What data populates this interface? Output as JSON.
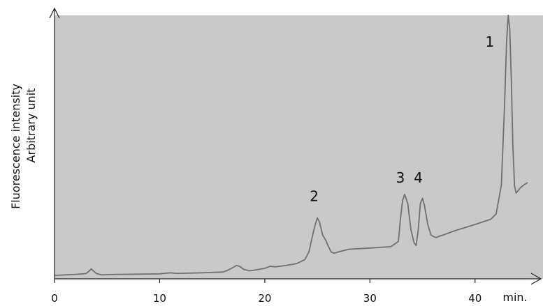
{
  "chart_data": {
    "type": "line",
    "title": "",
    "xlabel": "min.",
    "ylabel": "Fluorescence intensity",
    "ylabel_line2": "Arbitrary unit",
    "xlim": [
      0,
      45
    ],
    "ylim": [
      0,
      100
    ],
    "x_ticks": [
      0,
      10,
      20,
      30,
      40
    ],
    "x_tick_labels": [
      "0",
      "10",
      "20",
      "30",
      "40"
    ],
    "y_ticks_shown": false,
    "grid": false,
    "legend": "none",
    "plot_background": "#c9c9c9",
    "line_color": "#707070",
    "series": [
      {
        "x": [
          0,
          1,
          2,
          3,
          3.3,
          3.5,
          3.7,
          4,
          4.5,
          5,
          6,
          8,
          10,
          11,
          11.5,
          12,
          14,
          16,
          16.5,
          17,
          17.3,
          17.6,
          18,
          18.5,
          19,
          20,
          20.5,
          21,
          22,
          23,
          23.8,
          24.2,
          24.5,
          24.8,
          25,
          25.2,
          25.5,
          25.8,
          26,
          26.3,
          26.6,
          27,
          28,
          30,
          32,
          32.7,
          32.9,
          33.1,
          33.3,
          33.6,
          33.9,
          34.2,
          34.4,
          34.6,
          34.8,
          35,
          35.2,
          35.5,
          35.8,
          36,
          36.3,
          36.6,
          37,
          38,
          40,
          41.5,
          42,
          42.5,
          42.8,
          43,
          43.15,
          43.3,
          43.45,
          43.6,
          43.75,
          43.9,
          44.1,
          44.3,
          44.6,
          45
        ],
        "y": [
          0.5,
          0.7,
          0.9,
          1.2,
          2.2,
          3.0,
          2.2,
          1.2,
          0.7,
          0.8,
          0.9,
          1.0,
          1.1,
          1.5,
          1.3,
          1.3,
          1.5,
          1.8,
          2.5,
          3.6,
          4.3,
          4.0,
          2.8,
          2.3,
          2.5,
          3.2,
          4.0,
          3.8,
          4.3,
          5.0,
          6.5,
          9.5,
          15,
          20,
          22.5,
          21,
          16,
          14,
          12,
          9.5,
          9.0,
          9.5,
          10.5,
          11,
          11.5,
          13.5,
          22,
          29,
          31.5,
          28,
          18,
          13,
          12,
          18,
          28,
          30,
          27,
          20,
          16,
          15.5,
          15,
          15.5,
          16,
          17.5,
          20,
          22,
          24,
          35,
          65,
          90,
          100,
          95,
          75,
          50,
          35,
          32,
          33,
          34,
          35,
          36
        ]
      }
    ],
    "annotations": [
      {
        "text": "1",
        "x": 41.4,
        "y": 88
      },
      {
        "text": "2",
        "x": 24.7,
        "y": 29
      },
      {
        "text": "3",
        "x": 32.9,
        "y": 36
      },
      {
        "text": "4",
        "x": 34.6,
        "y": 36
      }
    ]
  }
}
